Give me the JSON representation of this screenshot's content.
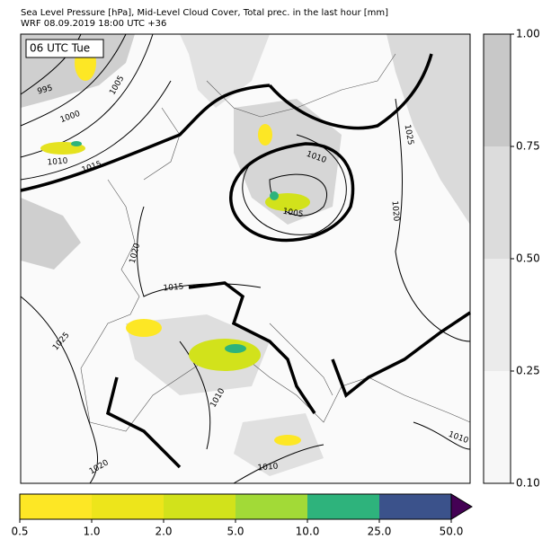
{
  "header": {
    "title": "Sea Level Pressure [hPa], Mid-Level Cloud Cover, Total prec. in the last hour [mm]",
    "subtitle": "WRF 08.09.2019 18:00 UTC +36"
  },
  "map": {
    "time_label": "06 UTC Tue",
    "contour_labels": [
      995,
      1005,
      1000,
      1010,
      1015,
      1010,
      1005,
      1025,
      1020,
      1020,
      1015,
      1025,
      1010,
      1020,
      1010,
      1010
    ]
  },
  "colorbar_cloud": {
    "colors": [
      "#f7f7f7",
      "#ebebeb",
      "#dcdcdc",
      "#c8c8c8"
    ],
    "ticks": [
      {
        "value": 0.1,
        "label": "0.10"
      },
      {
        "value": 0.25,
        "label": "0.25"
      },
      {
        "value": 0.5,
        "label": "0.50"
      },
      {
        "value": 0.75,
        "label": "0.75"
      },
      {
        "value": 1,
        "label": "1.00"
      }
    ]
  },
  "colorbar_precip": {
    "colors": [
      "#fde725",
      "#ede51b",
      "#d2e21b",
      "#a2da37",
      "#2eb37c",
      "#3b528b",
      "#440154"
    ],
    "ticks": [
      {
        "value": 0.5,
        "label": "0.5"
      },
      {
        "value": 1,
        "label": "1.0"
      },
      {
        "value": 2,
        "label": "2.0"
      },
      {
        "value": 5,
        "label": "5.0"
      },
      {
        "value": 10,
        "label": "10.0"
      },
      {
        "value": 25,
        "label": "25.0"
      },
      {
        "value": 50,
        "label": "50.0"
      }
    ]
  }
}
